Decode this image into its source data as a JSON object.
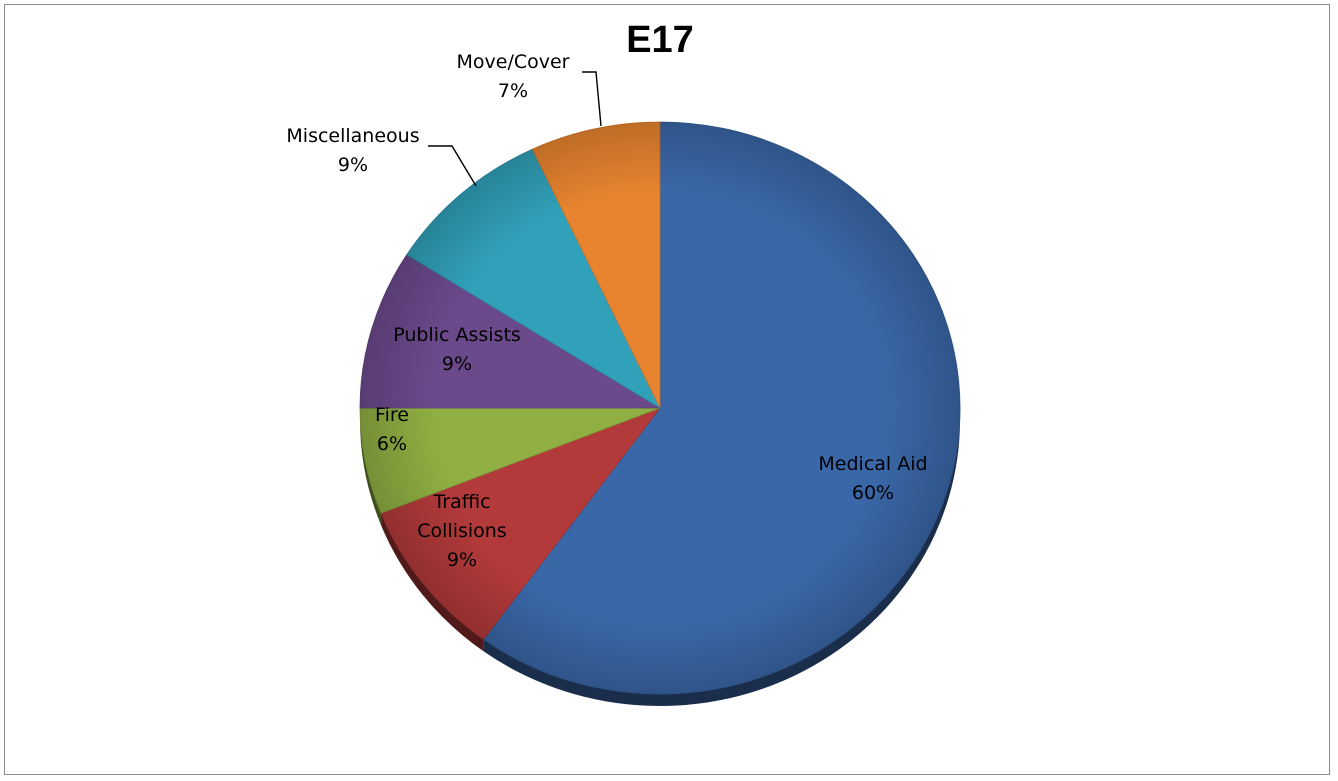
{
  "chart_data": {
    "type": "pie",
    "title": "E17",
    "slices": [
      {
        "label": "Medical Aid",
        "value": 60,
        "display": "60%",
        "color": "#3a67a8"
      },
      {
        "label": "Traffic Collisions",
        "value": 9,
        "display": "9%",
        "color": "#b33a3a"
      },
      {
        "label": "Fire",
        "value": 6,
        "display": "6%",
        "color": "#8faf42"
      },
      {
        "label": "Public Assists",
        "value": 9,
        "display": "9%",
        "color": "#6b4a8c"
      },
      {
        "label": "Miscellaneous",
        "value": 9,
        "display": "9%",
        "color": "#31a1b9"
      },
      {
        "label": "Move/Cover",
        "value": 7,
        "display": "7%",
        "color": "#e8842f"
      }
    ],
    "legend": "none"
  }
}
